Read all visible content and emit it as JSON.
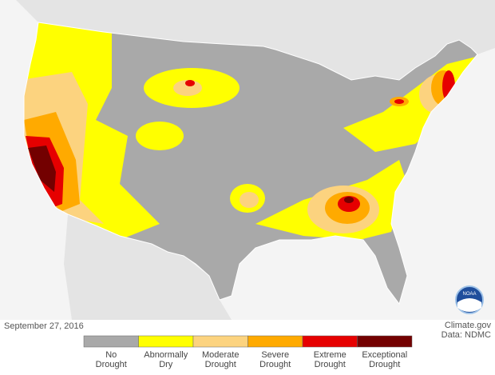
{
  "date": "September 27, 2016",
  "credit": {
    "site": "Climate.gov",
    "source": "Data: NDMC"
  },
  "legend": {
    "items": [
      {
        "label": [
          "No",
          "Drought"
        ],
        "color": "#a9a9a9"
      },
      {
        "label": [
          "Abnormally",
          "Dry"
        ],
        "color": "#ffff00"
      },
      {
        "label": [
          "Moderate",
          "Drought"
        ],
        "color": "#fcd37f"
      },
      {
        "label": [
          "Severe",
          "Drought"
        ],
        "color": "#ffaa00"
      },
      {
        "label": [
          "Extreme",
          "Drought"
        ],
        "color": "#e60000"
      },
      {
        "label": [
          "Exceptional",
          "Drought"
        ],
        "color": "#730000"
      }
    ]
  },
  "logo": "NOAA"
}
